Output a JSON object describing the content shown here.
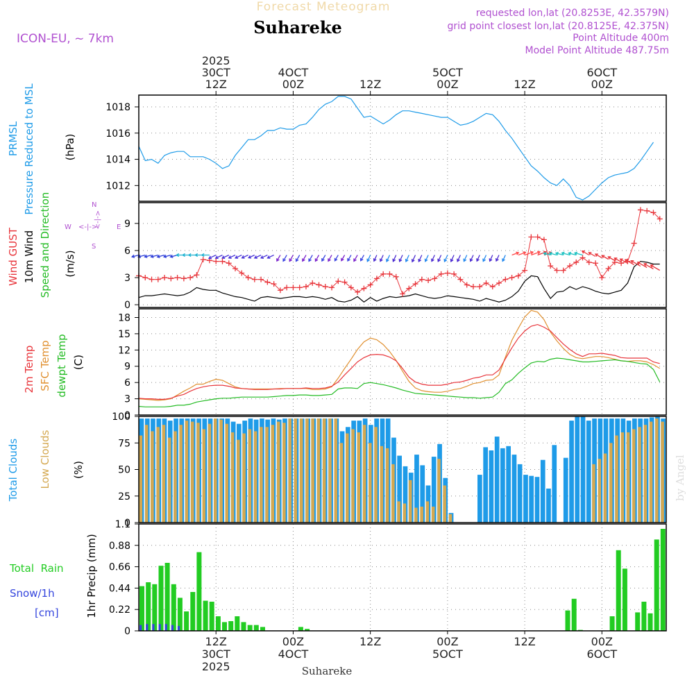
{
  "header": {
    "forecast_title": "Forecast Meteogram",
    "location": "Suhareke",
    "model": "ICON-EU, ~ 7km",
    "requested": "requested lon,lat (20.8253E, 42.3579N)",
    "grid_point": "grid point closest lon,lat (20.8125E, 42.375N)",
    "point_alt": "Point Altitude 400m",
    "model_alt": "Model Point Altitude 487.75m",
    "credit": "by Angel",
    "bottom_location": "Suhareke"
  },
  "colors": {
    "pressure": "#1e9be8",
    "gust": "#e8343a",
    "wind": "#000000",
    "green": "#22bb22",
    "orange": "#e09030",
    "cloud_total": "#1e9be8",
    "cloud_low": "#d4a850",
    "rain": "#22cc22",
    "snow": "#3344dd",
    "purple": "#b050d0"
  },
  "time_axis": {
    "top_labels": [
      {
        "x": 12,
        "lines": [
          "2025",
          "30CT",
          "12Z"
        ]
      },
      {
        "x": 24,
        "lines": [
          "4OCT",
          "00Z"
        ]
      },
      {
        "x": 36,
        "lines": [
          "12Z"
        ]
      },
      {
        "x": 48,
        "lines": [
          "5OCT",
          "00Z"
        ]
      },
      {
        "x": 60,
        "lines": [
          "12Z"
        ]
      },
      {
        "x": 72,
        "lines": [
          "6OCT",
          "00Z"
        ]
      }
    ],
    "bottom_labels": [
      {
        "x": 12,
        "lines": [
          "12Z",
          "30CT",
          "2025"
        ]
      },
      {
        "x": 24,
        "lines": [
          "00Z",
          "4OCT"
        ]
      },
      {
        "x": 36,
        "lines": [
          "12Z"
        ]
      },
      {
        "x": 48,
        "lines": [
          "00Z",
          "5OCT"
        ]
      },
      {
        "x": 60,
        "lines": [
          "12Z"
        ]
      },
      {
        "x": 72,
        "lines": [
          "00Z",
          "6OCT"
        ]
      }
    ]
  },
  "chart_data": [
    {
      "type": "line",
      "id": "pressure",
      "ylabel_lines": [
        "PRMSL",
        "Pressure Reduced to MSL"
      ],
      "unit": "(hPa)",
      "ylim": [
        1010.8,
        1018.9
      ],
      "yticks": [
        1012,
        1014,
        1016,
        1018
      ],
      "series": [
        {
          "name": "PRMSL",
          "values": [
            1015.0,
            1013.9,
            1014.0,
            1013.7,
            1014.3,
            1014.5,
            1014.6,
            1014.6,
            1014.2,
            1014.2,
            1014.2,
            1014.0,
            1013.7,
            1013.3,
            1013.5,
            1014.3,
            1014.9,
            1015.5,
            1015.5,
            1015.8,
            1016.2,
            1016.2,
            1016.4,
            1016.3,
            1016.3,
            1016.6,
            1016.7,
            1017.2,
            1017.8,
            1018.2,
            1018.4,
            1018.8,
            1018.8,
            1018.6,
            1017.9,
            1017.2,
            1017.3,
            1017.0,
            1016.7,
            1017.0,
            1017.4,
            1017.7,
            1017.7,
            1017.6,
            1017.5,
            1017.4,
            1017.3,
            1017.2,
            1017.2,
            1016.9,
            1016.6,
            1016.7,
            1016.9,
            1017.2,
            1017.5,
            1017.4,
            1016.9,
            1016.2,
            1015.6,
            1014.9,
            1014.2,
            1013.5,
            1013.1,
            1012.6,
            1012.2,
            1012.0,
            1012.5,
            1012.0,
            1011.1,
            1010.9,
            1011.2,
            1011.7,
            1012.2,
            1012.6,
            1012.8,
            1012.9,
            1013.0,
            1013.3,
            1013.9,
            1014.6,
            1015.3
          ]
        }
      ]
    },
    {
      "type": "line",
      "id": "wind",
      "ylabel_lines": [
        "Wind GUST",
        "10m Wind",
        "Speed and Direction"
      ],
      "unit": "(m/s)",
      "compass": {
        "w": "W",
        "e": "E",
        "n": "N",
        "s": "S"
      },
      "ylim": [
        -0.3,
        11.3
      ],
      "yticks": [
        0,
        3,
        6,
        9
      ],
      "series": [
        {
          "name": "Wind GUST",
          "values": [
            3.2,
            3.0,
            2.8,
            2.8,
            3.0,
            2.9,
            3.0,
            2.9,
            3.0,
            3.3,
            5.0,
            4.9,
            4.8,
            4.8,
            4.6,
            4.0,
            3.5,
            3.0,
            2.8,
            2.8,
            2.5,
            2.3,
            1.6,
            1.9,
            1.9,
            1.9,
            2.0,
            2.4,
            2.2,
            2.0,
            1.9,
            2.6,
            2.5,
            1.9,
            1.4,
            1.8,
            2.2,
            2.9,
            3.4,
            3.4,
            3.1,
            1.2,
            1.8,
            2.3,
            2.8,
            2.7,
            2.9,
            3.4,
            3.5,
            3.4,
            2.8,
            2.2,
            2.0,
            2.0,
            2.4,
            2.0,
            2.4,
            2.8,
            3.0,
            3.2,
            3.8,
            7.5,
            7.5,
            7.2,
            4.3,
            3.8,
            3.8,
            4.3,
            4.7,
            5.2,
            4.7,
            4.6,
            3.0,
            4.0,
            4.7,
            4.6,
            4.8,
            6.8,
            10.5,
            10.4,
            10.2,
            9.5
          ]
        },
        {
          "name": "10m Wind",
          "values": [
            0.8,
            1.0,
            1.0,
            1.1,
            1.2,
            1.1,
            1.0,
            1.1,
            1.4,
            1.9,
            1.7,
            1.6,
            1.6,
            1.3,
            1.1,
            0.9,
            0.8,
            0.6,
            0.4,
            0.8,
            0.9,
            0.8,
            0.7,
            0.8,
            0.9,
            0.9,
            0.8,
            0.9,
            0.8,
            0.6,
            0.8,
            0.4,
            0.3,
            0.5,
            0.9,
            0.3,
            0.8,
            0.4,
            0.7,
            0.9,
            0.8,
            0.9,
            1.0,
            1.2,
            1.0,
            0.8,
            0.7,
            0.8,
            1.0,
            0.9,
            0.8,
            0.7,
            0.6,
            0.4,
            0.7,
            0.5,
            0.3,
            0.5,
            0.9,
            1.5,
            2.6,
            3.2,
            3.1,
            1.8,
            0.7,
            1.4,
            1.5,
            2.0,
            1.7,
            2.0,
            1.8,
            1.5,
            1.3,
            1.2,
            1.4,
            1.6,
            2.4,
            4.2,
            4.8,
            4.7,
            4.5,
            4.5
          ]
        }
      ]
    },
    {
      "type": "line",
      "id": "temperature",
      "ylabel_lines": [
        "2m Temp",
        "SFC Temp",
        "dewpt Temp"
      ],
      "unit": "(C)",
      "ylim": [
        0,
        19.6
      ],
      "yticks": [
        0,
        3,
        6,
        9,
        12,
        15,
        18
      ],
      "series": [
        {
          "name": "2m Temp",
          "values": [
            3.1,
            3.0,
            3.0,
            2.9,
            2.9,
            3.1,
            3.5,
            3.8,
            4.4,
            4.9,
            5.2,
            5.4,
            5.5,
            5.5,
            5.3,
            5.0,
            4.9,
            4.8,
            4.7,
            4.7,
            4.7,
            4.8,
            4.8,
            4.9,
            4.9,
            4.9,
            5.0,
            4.9,
            4.9,
            5.0,
            5.3,
            6.1,
            7.4,
            8.6,
            9.8,
            10.6,
            11.1,
            11.2,
            11.1,
            10.7,
            10.0,
            8.6,
            7.0,
            6.1,
            5.7,
            5.5,
            5.5,
            5.5,
            5.7,
            6.0,
            6.1,
            6.4,
            6.8,
            7.0,
            7.4,
            7.4,
            8.3,
            10.4,
            12.4,
            14.2,
            15.5,
            16.4,
            16.7,
            16.2,
            15.5,
            14.3,
            13.1,
            12.1,
            11.3,
            10.8,
            11.3,
            11.3,
            11.4,
            11.2,
            11.0,
            10.6,
            10.5,
            10.5,
            10.5,
            10.5,
            9.8,
            9.5
          ]
        },
        {
          "name": "SFC Temp",
          "values": [
            3.0,
            2.9,
            2.8,
            2.7,
            2.8,
            3.0,
            3.7,
            4.4,
            5.0,
            5.7,
            5.7,
            6.2,
            6.6,
            6.4,
            5.8,
            5.2,
            4.9,
            4.8,
            4.8,
            4.8,
            4.8,
            4.8,
            4.9,
            4.9,
            4.9,
            4.9,
            4.9,
            4.7,
            4.7,
            4.8,
            5.2,
            6.8,
            8.6,
            10.3,
            12.1,
            13.5,
            14.2,
            13.9,
            13.0,
            11.7,
            10.1,
            8.1,
            6.2,
            5.0,
            4.5,
            4.3,
            4.2,
            4.2,
            4.4,
            4.7,
            4.9,
            5.3,
            5.8,
            6.0,
            6.4,
            6.5,
            7.4,
            10.7,
            13.8,
            16.0,
            18.1,
            19.3,
            19.0,
            17.6,
            15.3,
            13.7,
            12.3,
            11.2,
            10.6,
            10.4,
            10.6,
            10.8,
            10.8,
            10.6,
            10.3,
            10.0,
            9.9,
            10.0,
            10.0,
            9.8,
            9.3,
            8.6
          ]
        },
        {
          "name": "dewpt Temp",
          "values": [
            1.6,
            1.5,
            1.5,
            1.5,
            1.5,
            1.6,
            1.8,
            1.8,
            2.0,
            2.4,
            2.6,
            2.8,
            3.0,
            3.1,
            3.1,
            3.2,
            3.3,
            3.3,
            3.3,
            3.3,
            3.3,
            3.4,
            3.5,
            3.6,
            3.6,
            3.7,
            3.7,
            3.6,
            3.6,
            3.7,
            3.8,
            4.8,
            5.0,
            5.0,
            4.9,
            5.8,
            6.0,
            5.8,
            5.6,
            5.3,
            5.0,
            4.6,
            4.3,
            4.0,
            3.9,
            3.8,
            3.7,
            3.6,
            3.5,
            3.4,
            3.3,
            3.2,
            3.2,
            3.1,
            3.2,
            3.3,
            4.2,
            5.8,
            6.5,
            7.7,
            8.7,
            9.6,
            9.9,
            9.8,
            10.3,
            10.5,
            10.4,
            10.2,
            10.0,
            9.8,
            9.8,
            9.9,
            10.0,
            10.1,
            10.2,
            10.0,
            9.9,
            9.7,
            9.5,
            9.4,
            8.4,
            6.1
          ]
        }
      ]
    },
    {
      "type": "bar",
      "id": "clouds",
      "ylabel_lines": [
        "Total Clouds",
        "Low Clouds"
      ],
      "unit": "(%)",
      "ylim": [
        0,
        100
      ],
      "yticks": [
        0,
        25,
        50,
        75,
        100
      ],
      "series": [
        {
          "name": "Total Clouds",
          "values": [
            98,
            98,
            98,
            98,
            98,
            96,
            98,
            98,
            98,
            98,
            98,
            98,
            98,
            98,
            98,
            98,
            95,
            93,
            96,
            98,
            97,
            98,
            97,
            98,
            97,
            98,
            98,
            98,
            98,
            98,
            98,
            98,
            98,
            98,
            98,
            86,
            90,
            96,
            96,
            98,
            92,
            98,
            98,
            98,
            80,
            63,
            53,
            47,
            64,
            54,
            35,
            62,
            74,
            42,
            9,
            0,
            0,
            0,
            0,
            45,
            71,
            68,
            81,
            70,
            72,
            64,
            55,
            45,
            44,
            43,
            59,
            32,
            73,
            0,
            61,
            96,
            100,
            100,
            96,
            98,
            98,
            98,
            98,
            98,
            98,
            96,
            98,
            98,
            98,
            99,
            100,
            98
          ]
        },
        {
          "name": "Low Clouds",
          "values": [
            82,
            92,
            86,
            90,
            92,
            80,
            86,
            92,
            96,
            95,
            94,
            88,
            93,
            98,
            97,
            93,
            85,
            78,
            84,
            88,
            86,
            90,
            90,
            92,
            95,
            94,
            98,
            98,
            98,
            98,
            98,
            98,
            98,
            98,
            98,
            75,
            84,
            88,
            85,
            92,
            75,
            90,
            72,
            70,
            55,
            20,
            18,
            40,
            14,
            15,
            20,
            15,
            60,
            35,
            8,
            0,
            0,
            0,
            0,
            0,
            0,
            0,
            0,
            0,
            0,
            0,
            0,
            0,
            0,
            0,
            0,
            0,
            0,
            0,
            0,
            0,
            0,
            0,
            0,
            55,
            60,
            65,
            75,
            82,
            85,
            85,
            88,
            90,
            92,
            95,
            98,
            95
          ]
        }
      ]
    },
    {
      "type": "bar",
      "id": "precip",
      "ylabel_lines": [
        "1hr Precip (mm)"
      ],
      "left_labels": [
        "Total  Rain",
        "Snow/1h",
        "[cm]"
      ],
      "ylim": [
        0,
        1.1
      ],
      "yticks": [
        0,
        0.22,
        0.44,
        0.66,
        0.88,
        1.1
      ],
      "series": [
        {
          "name": "Total Rain",
          "values": [
            0.46,
            0.5,
            0.48,
            0.67,
            0.7,
            0.48,
            0.34,
            0.2,
            0.4,
            0.81,
            0.31,
            0.3,
            0.15,
            0.09,
            0.1,
            0.15,
            0.09,
            0.06,
            0.06,
            0.04,
            0,
            0,
            0,
            0,
            0,
            0.04,
            0.02,
            0,
            0,
            0,
            0,
            0,
            0,
            0,
            0,
            0,
            0,
            0,
            0,
            0,
            0,
            0,
            0,
            0,
            0,
            0,
            0,
            0,
            0,
            0,
            0,
            0,
            0,
            0,
            0,
            0,
            0,
            0,
            0,
            0,
            0,
            0,
            0,
            0,
            0,
            0,
            0,
            0.21,
            0.33,
            0.01,
            0,
            0,
            0,
            0,
            0.15,
            0.83,
            0.64,
            0,
            0.19,
            0.3,
            0.18,
            0.94,
            1.05
          ]
        },
        {
          "name": "Snow/1h",
          "values": [
            0.06,
            0.07,
            0.07,
            0.07,
            0.07,
            0.06,
            0.05,
            0,
            0,
            0,
            0,
            0,
            0,
            0,
            0,
            0,
            0,
            0,
            0,
            0,
            0,
            0,
            0,
            0,
            0,
            0,
            0,
            0,
            0,
            0,
            0,
            0,
            0,
            0,
            0,
            0,
            0,
            0,
            0,
            0,
            0,
            0,
            0,
            0,
            0,
            0,
            0,
            0,
            0,
            0,
            0,
            0,
            0,
            0,
            0,
            0,
            0,
            0,
            0,
            0,
            0,
            0,
            0,
            0,
            0,
            0,
            0,
            0,
            0,
            0,
            0,
            0,
            0,
            0,
            0,
            0,
            0,
            0,
            0,
            0,
            0,
            0,
            0
          ]
        }
      ]
    }
  ]
}
